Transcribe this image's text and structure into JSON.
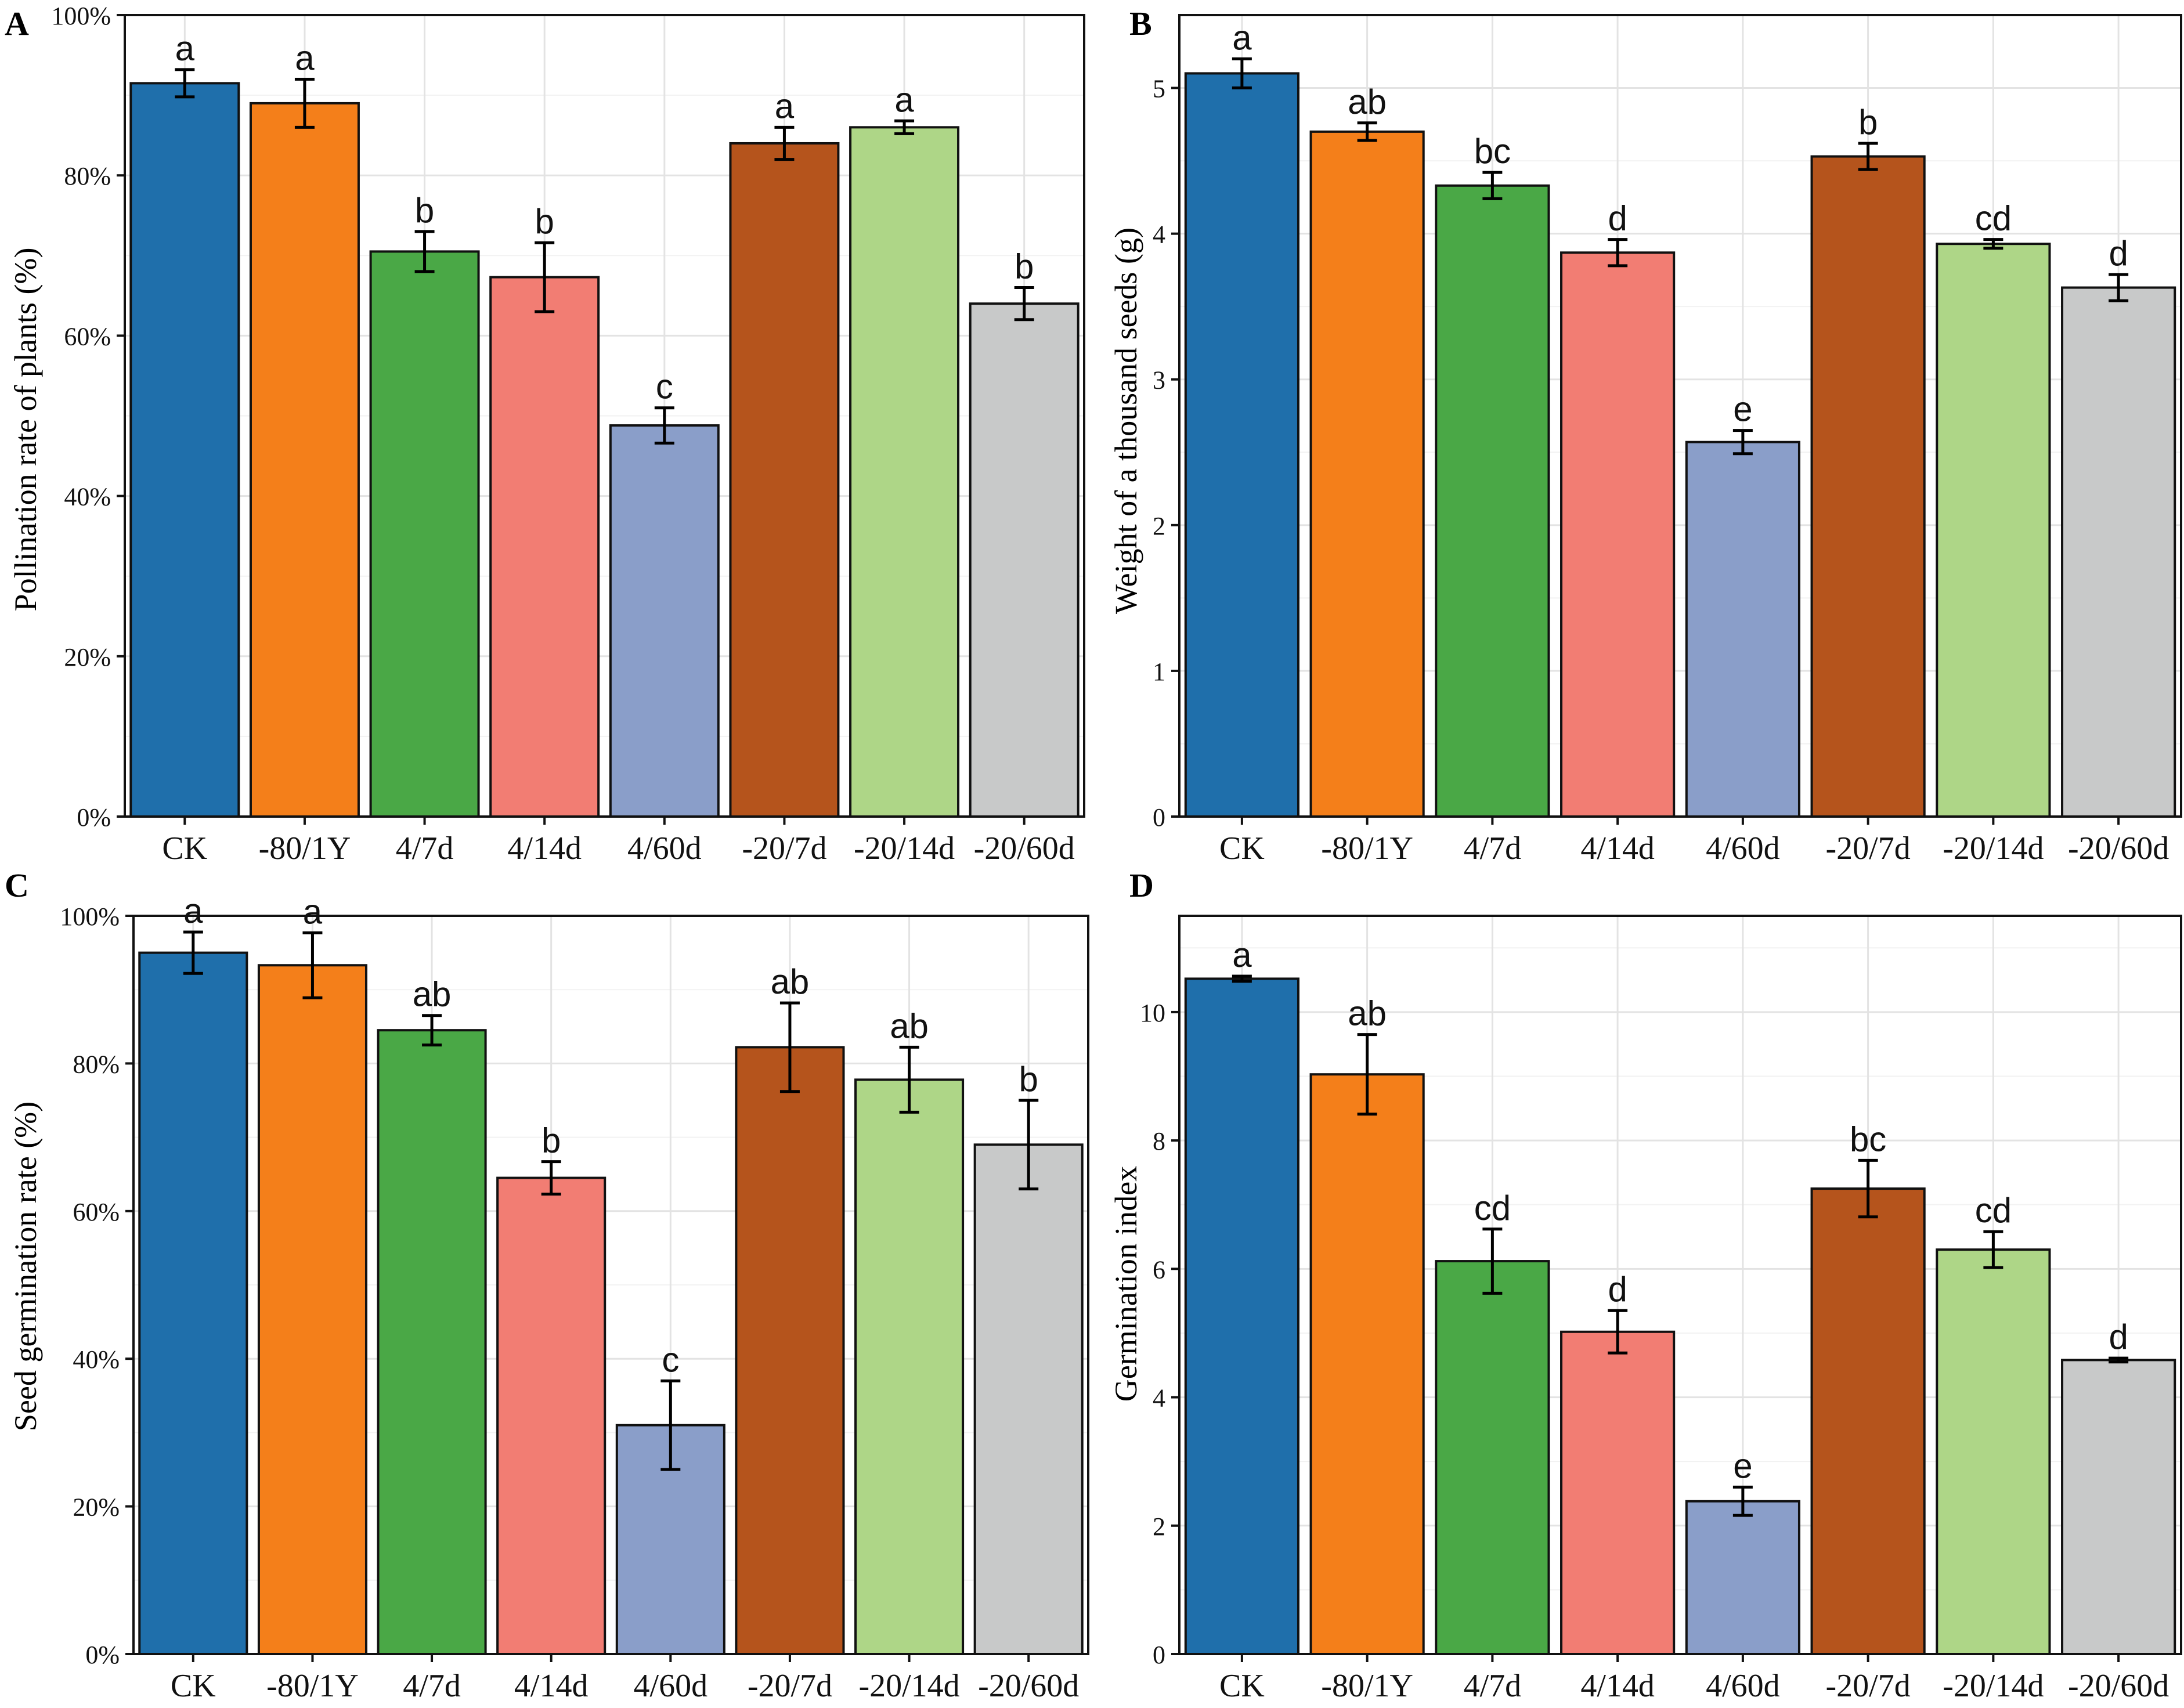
{
  "colors": [
    "#1f6fab",
    "#f47f1a",
    "#4aa846",
    "#f27d73",
    "#8a9ec9",
    "#b5541c",
    "#aed687",
    "#c8c9c9"
  ],
  "chart_data": [
    {
      "panel": "A",
      "type": "bar",
      "ylabel": "Pollination rate of plants (%)",
      "ylim": [
        0,
        100
      ],
      "yticks": [
        0,
        20,
        40,
        60,
        80,
        100
      ],
      "ytick_labels": [
        "0%",
        "20%",
        "40%",
        "60%",
        "80%",
        "100%"
      ],
      "categories": [
        "CK",
        "-80/1Y",
        "4/7d",
        "4/14d",
        "4/60d",
        "-20/7d",
        "-20/14d",
        "-20/60d"
      ],
      "values": [
        91.5,
        89,
        70.5,
        67.3,
        48.8,
        84,
        86,
        64
      ],
      "errors": [
        1.7,
        3,
        2.5,
        4.3,
        2.2,
        2,
        0.8,
        2
      ],
      "letters": [
        "a",
        "a",
        "b",
        "b",
        "c",
        "a",
        "a",
        "b"
      ]
    },
    {
      "panel": "B",
      "type": "bar",
      "ylabel": "Weight of a thousand seeds (g)",
      "ylim": [
        0,
        5.5
      ],
      "yticks": [
        0,
        1,
        2,
        3,
        4,
        5
      ],
      "ytick_labels": [
        "0",
        "1",
        "2",
        "3",
        "4",
        "5"
      ],
      "categories": [
        "CK",
        "-80/1Y",
        "4/7d",
        "4/14d",
        "4/60d",
        "-20/7d",
        "-20/14d",
        "-20/60d"
      ],
      "values": [
        5.1,
        4.7,
        4.33,
        3.87,
        2.57,
        4.53,
        3.93,
        3.63
      ],
      "errors": [
        0.1,
        0.06,
        0.09,
        0.09,
        0.08,
        0.09,
        0.03,
        0.09
      ],
      "letters": [
        "a",
        "ab",
        "bc",
        "d",
        "e",
        "b",
        "cd",
        "d"
      ]
    },
    {
      "panel": "C",
      "type": "bar",
      "ylabel": "Seed germination rate (%)",
      "ylim": [
        0,
        100
      ],
      "yticks": [
        0,
        20,
        40,
        60,
        80,
        100
      ],
      "ytick_labels": [
        "0%",
        "20%",
        "40%",
        "60%",
        "80%",
        "100%"
      ],
      "categories": [
        "CK",
        "-80/1Y",
        "4/7d",
        "4/14d",
        "4/60d",
        "-20/7d",
        "-20/14d",
        "-20/60d"
      ],
      "values": [
        95,
        93.3,
        84.5,
        64.5,
        31,
        82.2,
        77.8,
        69
      ],
      "errors": [
        2.8,
        4.4,
        2,
        2.2,
        6,
        6,
        4.4,
        6
      ],
      "letters": [
        "a",
        "a",
        "ab",
        "b",
        "c",
        "ab",
        "ab",
        "b"
      ]
    },
    {
      "panel": "D",
      "type": "bar",
      "ylabel": "Germination index",
      "ylim": [
        0,
        11.5
      ],
      "yticks": [
        0,
        2,
        4,
        6,
        8,
        10
      ],
      "ytick_labels": [
        "0",
        "2",
        "4",
        "6",
        "8",
        "10"
      ],
      "categories": [
        "CK",
        "-80/1Y",
        "4/7d",
        "4/14d",
        "4/60d",
        "-20/7d",
        "-20/14d",
        "-20/60d"
      ],
      "values": [
        10.52,
        9.03,
        6.12,
        5.02,
        2.38,
        7.25,
        6.3,
        4.58
      ],
      "errors": [
        0.04,
        0.62,
        0.5,
        0.33,
        0.22,
        0.44,
        0.28,
        0.03
      ],
      "letters": [
        "a",
        "ab",
        "cd",
        "d",
        "e",
        "bc",
        "cd",
        "d"
      ]
    }
  ]
}
